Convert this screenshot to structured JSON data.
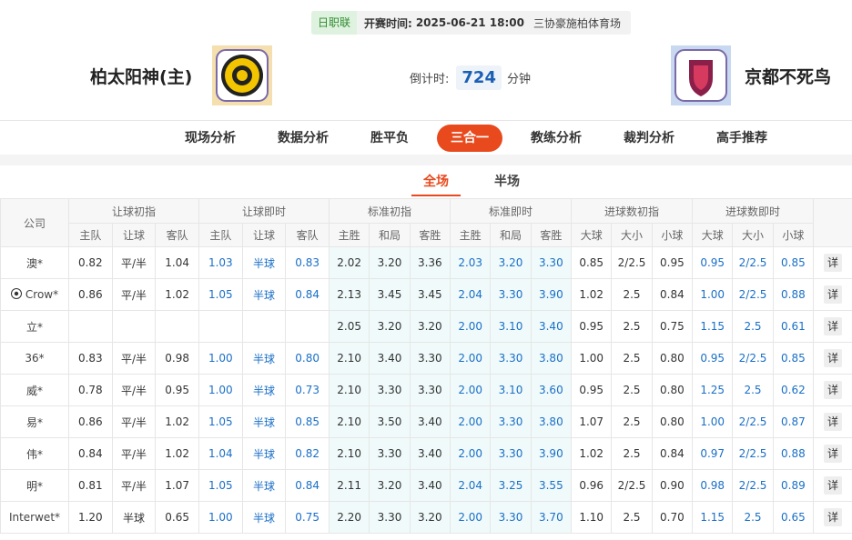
{
  "header": {
    "league": "日职联",
    "start_label": "开赛时间:",
    "start_time": "2025-06-21 18:00",
    "venue": "三协豪施柏体育场",
    "home_team": "柏太阳神(主)",
    "away_team": "京都不死鸟",
    "countdown_label": "倒计时:",
    "countdown_value": "724",
    "countdown_unit": "分钟"
  },
  "nav_tabs": [
    "现场分析",
    "数据分析",
    "胜平负",
    "三合一",
    "教练分析",
    "裁判分析",
    "高手推荐"
  ],
  "active_nav_tab": 3,
  "sub_tabs": [
    "全场",
    "半场"
  ],
  "active_sub_tab": 0,
  "table": {
    "company_header": "公司",
    "detail_button": "详",
    "groups": [
      {
        "title": "让球初指",
        "columns": [
          "主队",
          "让球",
          "客队"
        ]
      },
      {
        "title": "让球即时",
        "columns": [
          "主队",
          "让球",
          "客队"
        ]
      },
      {
        "title": "标准初指",
        "columns": [
          "主胜",
          "和局",
          "客胜"
        ]
      },
      {
        "title": "标准即时",
        "columns": [
          "主胜",
          "和局",
          "客胜"
        ]
      },
      {
        "title": "进球数初指",
        "columns": [
          "大球",
          "大小",
          "小球"
        ]
      },
      {
        "title": "进球数即时",
        "columns": [
          "大球",
          "大小",
          "小球"
        ]
      }
    ],
    "rows": [
      {
        "company": "澳*",
        "cells": [
          "0.82",
          "平/半",
          "1.04",
          "1.03",
          "半球",
          "0.83",
          "2.02",
          "3.20",
          "3.36",
          "2.03",
          "3.20",
          "3.30",
          "0.85",
          "2/2.5",
          "0.95",
          "0.95",
          "2/2.5",
          "0.85"
        ]
      },
      {
        "company": "Crow*",
        "icon": "soccer",
        "cells": [
          "0.86",
          "平/半",
          "1.02",
          "1.05",
          "半球",
          "0.84",
          "2.13",
          "3.45",
          "3.45",
          "2.04",
          "3.30",
          "3.90",
          "1.02",
          "2.5",
          "0.84",
          "1.00",
          "2/2.5",
          "0.88"
        ]
      },
      {
        "company": "立*",
        "cells": [
          null,
          null,
          null,
          null,
          null,
          null,
          "2.05",
          "3.20",
          "3.20",
          "2.00",
          "3.10",
          "3.40",
          "0.95",
          "2.5",
          "0.75",
          "1.15",
          "2.5",
          "0.61"
        ]
      },
      {
        "company": "36*",
        "cells": [
          "0.83",
          "平/半",
          "0.98",
          "1.00",
          "半球",
          "0.80",
          "2.10",
          "3.40",
          "3.30",
          "2.00",
          "3.30",
          "3.80",
          "1.00",
          "2.5",
          "0.80",
          "0.95",
          "2/2.5",
          "0.85"
        ]
      },
      {
        "company": "威*",
        "cells": [
          "0.78",
          "平/半",
          "0.95",
          "1.00",
          "半球",
          "0.73",
          "2.10",
          "3.30",
          "3.30",
          "2.00",
          "3.10",
          "3.60",
          "0.95",
          "2.5",
          "0.80",
          "1.25",
          "2.5",
          "0.62"
        ]
      },
      {
        "company": "易*",
        "cells": [
          "0.86",
          "平/半",
          "1.02",
          "1.05",
          "半球",
          "0.85",
          "2.10",
          "3.50",
          "3.40",
          "2.00",
          "3.30",
          "3.80",
          "1.07",
          "2.5",
          "0.80",
          "1.00",
          "2/2.5",
          "0.87"
        ]
      },
      {
        "company": "伟*",
        "cells": [
          "0.84",
          "平/半",
          "1.02",
          "1.04",
          "半球",
          "0.82",
          "2.10",
          "3.30",
          "3.40",
          "2.00",
          "3.30",
          "3.90",
          "1.02",
          "2.5",
          "0.84",
          "0.97",
          "2/2.5",
          "0.88"
        ]
      },
      {
        "company": "明*",
        "cells": [
          "0.81",
          "平/半",
          "1.07",
          "1.05",
          "半球",
          "0.84",
          "2.11",
          "3.20",
          "3.40",
          "2.04",
          "3.25",
          "3.55",
          "0.96",
          "2/2.5",
          "0.90",
          "0.98",
          "2/2.5",
          "0.89"
        ]
      },
      {
        "company": "Interwet*",
        "cells": [
          "1.20",
          "半球",
          "0.65",
          "1.00",
          "半球",
          "0.75",
          "2.20",
          "3.30",
          "3.20",
          "2.00",
          "3.30",
          "3.70",
          "1.10",
          "2.5",
          "0.70",
          "1.15",
          "2.5",
          "0.65"
        ]
      }
    ]
  }
}
